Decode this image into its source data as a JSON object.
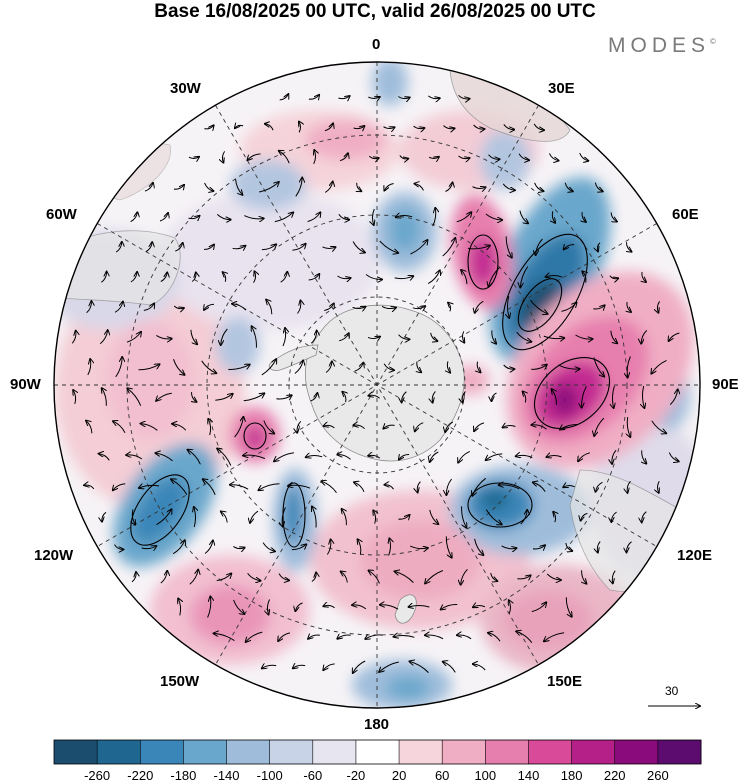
{
  "title": "Base 16/08/2025 00 UTC, valid 26/08/2025 00 UTC",
  "brand": {
    "name": "MODES",
    "mark": "©"
  },
  "longitude_labels": {
    "top": "0",
    "w30": "30W",
    "e30": "30E",
    "w60": "60W",
    "e60": "60E",
    "w90": "90W",
    "e90": "90E",
    "w120": "120W",
    "e120": "120E",
    "w150": "150W",
    "e150": "150E",
    "bottom": "180"
  },
  "reference_vector": {
    "label": "30"
  },
  "colorbar": {
    "colors": [
      "#1b4d6e",
      "#1f6791",
      "#3a86b8",
      "#6aa7cc",
      "#9fbddb",
      "#c9d3e8",
      "#e7e6f0",
      "#ffffff",
      "#f7d5dc",
      "#f0aec4",
      "#e77fae",
      "#d94a99",
      "#b51f88",
      "#8a0c7c",
      "#5c0c6e"
    ],
    "ticks": [
      "-260",
      "-220",
      "-180",
      "-140",
      "-100",
      "-60",
      "-20",
      "20",
      "60",
      "100",
      "140",
      "180",
      "220",
      "260"
    ]
  },
  "colors": {
    "land": "#e9e9e9",
    "coast": "#8c8c8c",
    "grid": "#333333"
  }
}
